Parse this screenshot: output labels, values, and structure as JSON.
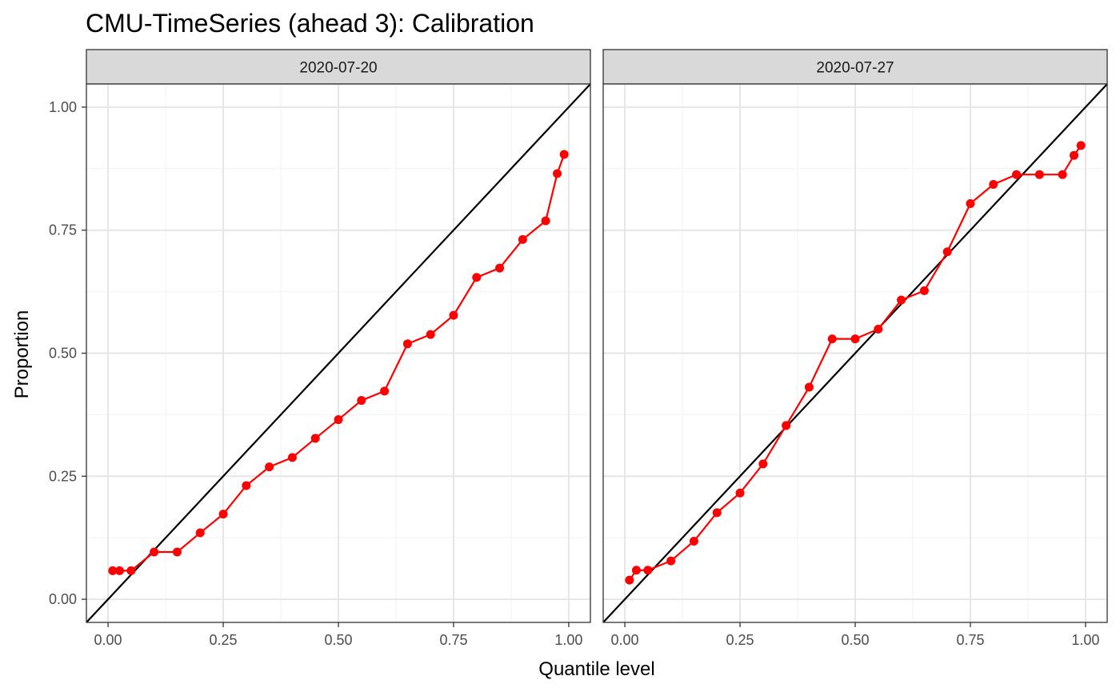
{
  "chart_data": {
    "type": "line",
    "title": "CMU-TimeSeries (ahead 3): Calibration",
    "xlabel": "Quantile level",
    "ylabel": "Proportion",
    "xlim": [
      -0.047,
      1.047
    ],
    "ylim": [
      -0.047,
      1.047
    ],
    "x_ticks": [
      "0.00",
      "0.25",
      "0.50",
      "0.75",
      "1.00"
    ],
    "y_ticks": [
      "0.00",
      "0.25",
      "0.50",
      "0.75",
      "1.00"
    ],
    "grid": true,
    "reference_line": "y = x",
    "series_color": "#ff0000",
    "reference_color": "#000000",
    "panels": [
      {
        "label": "2020-07-20",
        "x": [
          0.01,
          0.025,
          0.05,
          0.1,
          0.15,
          0.2,
          0.25,
          0.3,
          0.35,
          0.4,
          0.45,
          0.5,
          0.55,
          0.6,
          0.65,
          0.7,
          0.75,
          0.8,
          0.85,
          0.9,
          0.95,
          0.975,
          0.99
        ],
        "y": [
          0.058,
          0.058,
          0.058,
          0.096,
          0.096,
          0.135,
          0.173,
          0.231,
          0.269,
          0.288,
          0.327,
          0.365,
          0.404,
          0.423,
          0.519,
          0.538,
          0.577,
          0.654,
          0.673,
          0.731,
          0.769,
          0.865,
          0.904
        ]
      },
      {
        "label": "2020-07-27",
        "x": [
          0.01,
          0.025,
          0.05,
          0.1,
          0.15,
          0.2,
          0.25,
          0.3,
          0.35,
          0.4,
          0.45,
          0.5,
          0.55,
          0.6,
          0.65,
          0.7,
          0.75,
          0.8,
          0.85,
          0.9,
          0.95,
          0.975,
          0.99
        ],
        "y": [
          0.039,
          0.059,
          0.059,
          0.078,
          0.118,
          0.176,
          0.216,
          0.275,
          0.353,
          0.431,
          0.529,
          0.529,
          0.549,
          0.608,
          0.627,
          0.706,
          0.804,
          0.843,
          0.863,
          0.863,
          0.863,
          0.902,
          0.922
        ]
      }
    ]
  }
}
